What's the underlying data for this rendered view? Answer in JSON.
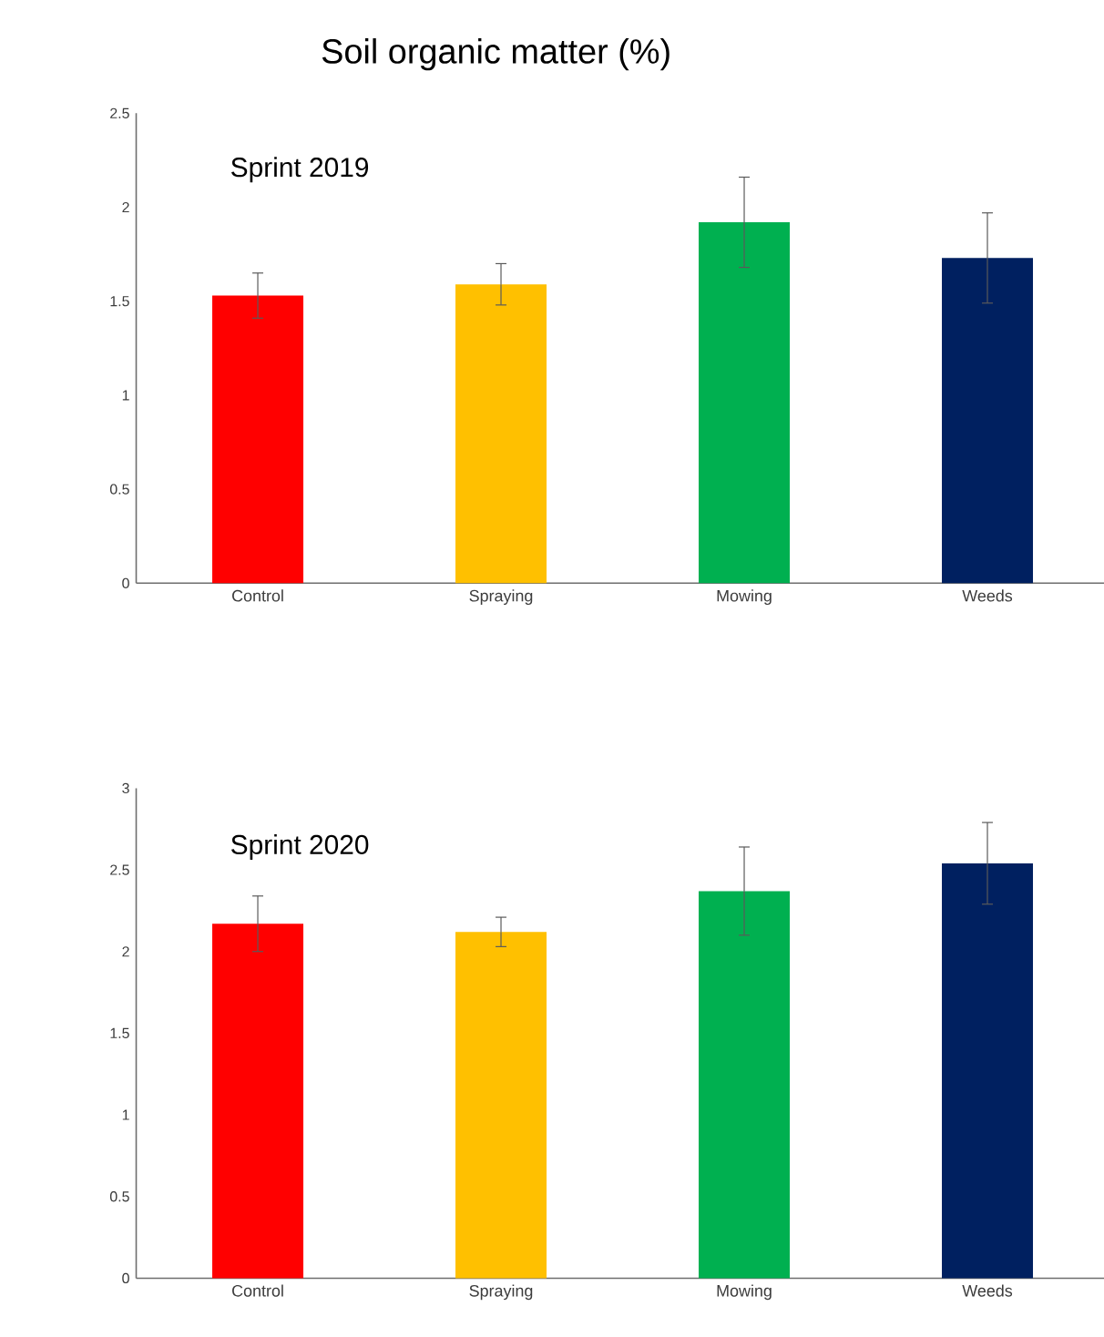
{
  "chart_data": [
    {
      "type": "bar",
      "title": "Soil organic matter (%)",
      "subtitle": "Sprint 2019",
      "categories": [
        "Control",
        "Spraying",
        "Mowing",
        "Weeds"
      ],
      "values": [
        1.53,
        1.59,
        1.92,
        1.73
      ],
      "errors": [
        0.12,
        0.11,
        0.24,
        0.24
      ],
      "colors": [
        "#ff0000",
        "#ffc000",
        "#00b050",
        "#002060"
      ],
      "ylim": [
        0,
        2.5
      ],
      "yticks": [
        0,
        0.5,
        1,
        1.5,
        2,
        2.5
      ]
    },
    {
      "type": "bar",
      "subtitle": "Sprint 2020",
      "categories": [
        "Control",
        "Spraying",
        "Mowing",
        "Weeds"
      ],
      "values": [
        2.17,
        2.12,
        2.37,
        2.54
      ],
      "errors": [
        0.17,
        0.09,
        0.27,
        0.25
      ],
      "colors": [
        "#ff0000",
        "#ffc000",
        "#00b050",
        "#002060"
      ],
      "ylim": [
        0,
        3
      ],
      "yticks": [
        0,
        0.5,
        1,
        1.5,
        2,
        2.5,
        3
      ]
    }
  ]
}
